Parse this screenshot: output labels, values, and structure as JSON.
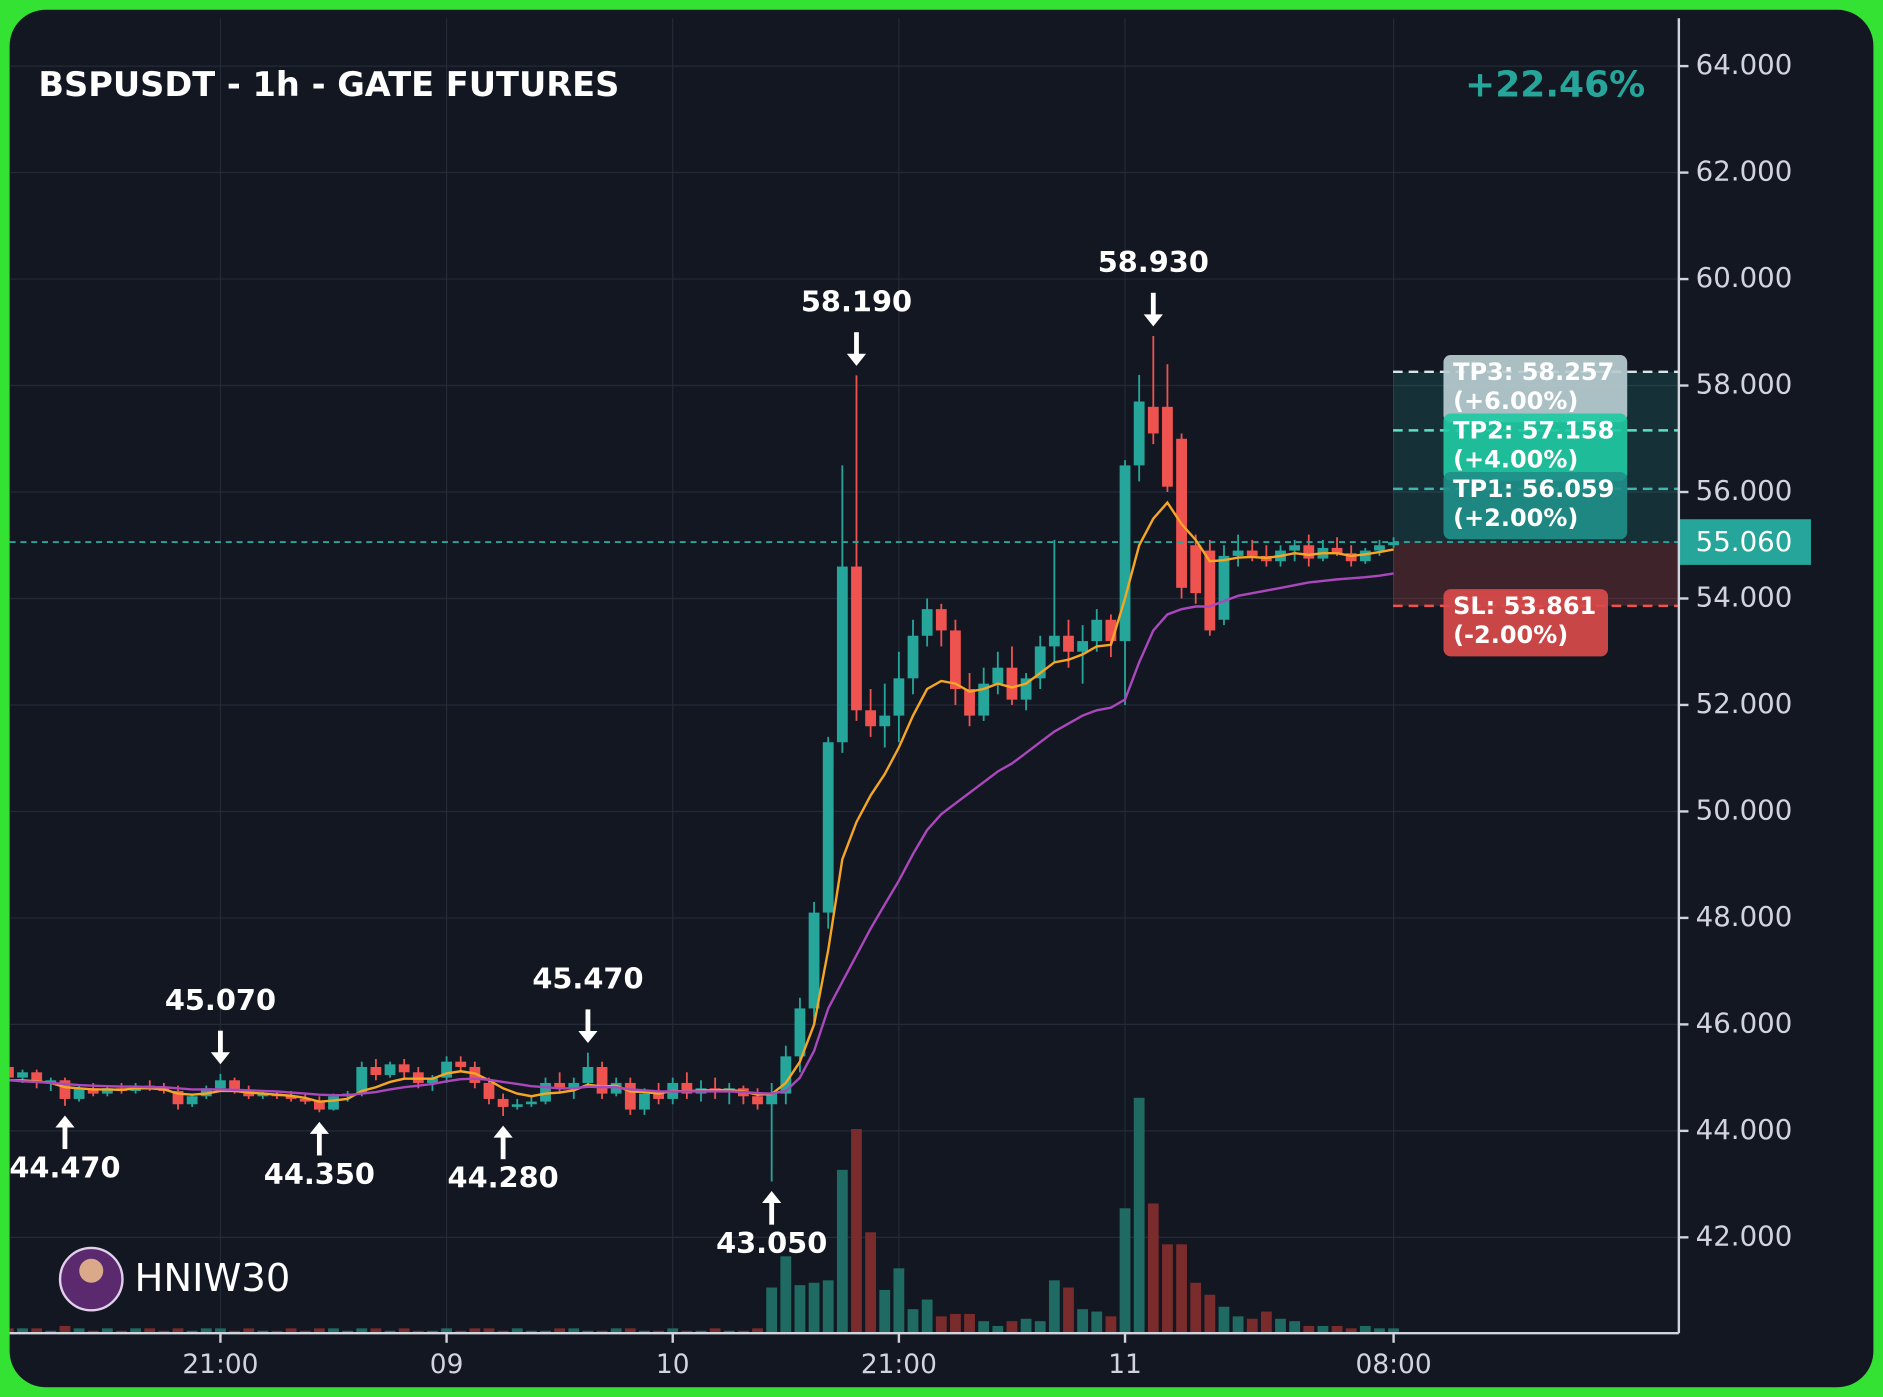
{
  "chart_data": {
    "type": "candlestick",
    "title": "BSPUSDT - 1h - GATE FUTURES",
    "change": "+22.46%",
    "watermark": "HNIW30",
    "categories": [
      null,
      null,
      null,
      null,
      null,
      null,
      null,
      null,
      null,
      null,
      null,
      null,
      null,
      null,
      null,
      "21:00",
      null,
      null,
      null,
      null,
      null,
      null,
      null,
      null,
      null,
      null,
      null,
      null,
      null,
      null,
      null,
      "09",
      null,
      null,
      null,
      null,
      null,
      null,
      null,
      null,
      null,
      null,
      null,
      null,
      null,
      null,
      null,
      "10",
      null,
      null,
      null,
      null,
      null,
      null,
      null,
      null,
      null,
      null,
      null,
      null,
      null,
      null,
      null,
      "21:00",
      null,
      null,
      null,
      null,
      null,
      null,
      null,
      null,
      null,
      null,
      null,
      null,
      null,
      null,
      null,
      "11",
      null,
      null,
      null,
      null,
      null,
      null,
      null,
      null,
      null,
      null,
      null,
      null,
      null,
      null,
      null,
      null,
      null,
      null,
      "08:00"
    ],
    "open": [
      45.2,
      45.0,
      45.1,
      44.9,
      44.95,
      44.6,
      44.8,
      44.7,
      44.8,
      44.75,
      44.85,
      44.8,
      44.75,
      44.5,
      44.65,
      44.8,
      44.95,
      44.75,
      44.65,
      44.7,
      44.65,
      44.6,
      44.55,
      44.4,
      44.65,
      44.7,
      45.2,
      45.05,
      45.25,
      45.1,
      44.9,
      45.0,
      45.3,
      45.2,
      44.9,
      44.6,
      44.45,
      44.5,
      44.55,
      44.9,
      44.8,
      44.9,
      45.2,
      44.7,
      44.9,
      44.4,
      44.7,
      44.6,
      44.9,
      44.7,
      44.8,
      44.75,
      44.8,
      44.65,
      44.5,
      44.7,
      45.4,
      46.3,
      48.1,
      51.3,
      54.6,
      51.9,
      51.6,
      51.8,
      52.5,
      53.3,
      53.8,
      53.4,
      52.3,
      51.8,
      52.4,
      52.7,
      52.1,
      52.5,
      53.1,
      53.3,
      53.0,
      53.2,
      53.6,
      53.2,
      56.5,
      57.6,
      57.6,
      57.0,
      55.0,
      54.9,
      53.6,
      54.8,
      54.9,
      54.8,
      54.7,
      54.9,
      55.0,
      54.75,
      54.95,
      54.85,
      54.7,
      54.9,
      55.0
    ],
    "high": [
      45.25,
      45.15,
      45.15,
      45.0,
      45.0,
      44.85,
      44.9,
      44.85,
      44.9,
      44.9,
      44.95,
      44.9,
      44.85,
      44.7,
      44.85,
      45.07,
      45.0,
      44.85,
      44.75,
      44.75,
      44.75,
      44.7,
      44.65,
      44.7,
      44.75,
      45.3,
      45.35,
      45.3,
      45.35,
      45.2,
      45.05,
      45.4,
      45.4,
      45.3,
      45.0,
      44.7,
      44.6,
      44.65,
      45.0,
      45.1,
      45.0,
      45.47,
      45.3,
      45.0,
      45.0,
      44.8,
      44.9,
      45.0,
      45.1,
      44.95,
      45.0,
      44.9,
      44.85,
      44.8,
      44.9,
      45.6,
      46.5,
      48.3,
      51.4,
      56.5,
      58.19,
      52.3,
      52.4,
      53.0,
      53.6,
      54.0,
      53.9,
      53.6,
      52.6,
      52.7,
      53.0,
      53.1,
      52.6,
      53.3,
      55.1,
      53.6,
      53.5,
      53.8,
      53.7,
      56.6,
      58.2,
      58.93,
      58.4,
      57.1,
      55.2,
      55.1,
      55.0,
      55.2,
      55.1,
      55.0,
      55.0,
      55.1,
      55.2,
      55.1,
      55.15,
      55.0,
      54.95,
      55.1,
      55.15
    ],
    "low": [
      44.9,
      44.9,
      44.8,
      44.75,
      44.47,
      44.55,
      44.65,
      44.65,
      44.7,
      44.7,
      44.75,
      44.7,
      44.4,
      44.45,
      44.6,
      44.75,
      44.7,
      44.6,
      44.6,
      44.6,
      44.55,
      44.5,
      44.35,
      44.38,
      44.55,
      44.65,
      44.95,
      45.0,
      45.0,
      44.8,
      44.75,
      44.9,
      45.1,
      44.8,
      44.5,
      44.28,
      44.4,
      44.45,
      44.5,
      44.7,
      44.6,
      44.85,
      44.6,
      44.65,
      44.3,
      44.3,
      44.5,
      44.5,
      44.6,
      44.55,
      44.6,
      44.5,
      44.5,
      44.4,
      43.05,
      44.5,
      45.1,
      46.0,
      47.8,
      51.1,
      51.7,
      51.4,
      51.2,
      51.3,
      52.2,
      53.1,
      53.1,
      52.0,
      51.6,
      51.7,
      52.2,
      52.0,
      51.9,
      52.3,
      52.8,
      52.7,
      52.4,
      53.0,
      52.9,
      52.0,
      56.2,
      56.9,
      56.0,
      54.0,
      53.9,
      53.3,
      53.5,
      54.6,
      54.7,
      54.6,
      54.6,
      54.7,
      54.6,
      54.7,
      54.8,
      54.6,
      54.65,
      54.8,
      54.95
    ],
    "close": [
      45.0,
      45.1,
      44.9,
      44.95,
      44.6,
      44.8,
      44.7,
      44.8,
      44.75,
      44.85,
      44.8,
      44.75,
      44.5,
      44.65,
      44.8,
      44.95,
      44.75,
      44.65,
      44.7,
      44.65,
      44.6,
      44.55,
      44.4,
      44.65,
      44.7,
      45.2,
      45.05,
      45.25,
      45.1,
      44.9,
      45.0,
      45.3,
      45.2,
      44.9,
      44.6,
      44.45,
      44.5,
      44.55,
      44.9,
      44.8,
      44.9,
      45.2,
      44.7,
      44.9,
      44.4,
      44.7,
      44.6,
      44.9,
      44.7,
      44.8,
      44.75,
      44.8,
      44.65,
      44.5,
      44.7,
      45.4,
      46.3,
      48.1,
      51.3,
      54.6,
      51.9,
      51.6,
      51.8,
      52.5,
      53.3,
      53.8,
      53.4,
      52.3,
      51.8,
      52.4,
      52.7,
      52.1,
      52.5,
      53.1,
      53.3,
      53.0,
      53.2,
      53.6,
      53.2,
      56.5,
      57.7,
      57.1,
      56.1,
      54.2,
      54.1,
      53.4,
      54.8,
      54.9,
      54.8,
      54.7,
      54.9,
      55.0,
      54.75,
      54.95,
      54.85,
      54.7,
      54.9,
      55.0,
      55.06
    ],
    "up_color": "#26a69a",
    "down_color": "#ef5350",
    "lines": [
      {
        "color": "#f5a623",
        "values": [
          44.95,
          44.95,
          44.93,
          44.9,
          44.82,
          44.8,
          44.78,
          44.78,
          44.77,
          44.8,
          44.8,
          44.78,
          44.7,
          44.68,
          44.7,
          44.75,
          44.75,
          44.72,
          44.7,
          44.68,
          44.66,
          44.62,
          44.55,
          44.57,
          44.6,
          44.75,
          44.82,
          44.92,
          44.98,
          44.98,
          44.98,
          45.08,
          45.12,
          45.08,
          44.95,
          44.8,
          44.7,
          44.65,
          44.7,
          44.72,
          44.76,
          44.87,
          44.83,
          44.85,
          44.74,
          44.73,
          44.7,
          44.75,
          44.74,
          44.76,
          44.76,
          44.77,
          44.74,
          44.68,
          44.69,
          44.9,
          45.3,
          46.0,
          47.4,
          49.1,
          49.8,
          50.3,
          50.7,
          51.2,
          51.8,
          52.3,
          52.45,
          52.4,
          52.25,
          52.3,
          52.4,
          52.33,
          52.4,
          52.6,
          52.8,
          52.85,
          52.95,
          53.1,
          53.13,
          54.0,
          55.0,
          55.5,
          55.8,
          55.4,
          55.1,
          54.7,
          54.72,
          54.77,
          54.78,
          54.76,
          54.8,
          54.85,
          54.82,
          54.85,
          54.85,
          54.8,
          54.83,
          54.87,
          54.92
        ]
      },
      {
        "color": "#ab47bc",
        "values": [
          44.95,
          44.93,
          44.92,
          44.9,
          44.88,
          44.86,
          44.85,
          44.84,
          44.83,
          44.83,
          44.82,
          44.82,
          44.8,
          44.78,
          44.78,
          44.78,
          44.77,
          44.76,
          44.75,
          44.74,
          44.72,
          44.7,
          44.68,
          44.67,
          44.67,
          44.7,
          44.73,
          44.78,
          44.82,
          44.85,
          44.88,
          44.93,
          44.97,
          44.98,
          44.96,
          44.92,
          44.88,
          44.84,
          44.82,
          44.8,
          44.8,
          44.83,
          44.82,
          44.82,
          44.78,
          44.76,
          44.74,
          44.74,
          44.74,
          44.74,
          44.74,
          44.74,
          44.73,
          44.71,
          44.7,
          44.75,
          45.0,
          45.5,
          46.3,
          46.8,
          47.3,
          47.8,
          48.25,
          48.7,
          49.2,
          49.65,
          49.95,
          50.15,
          50.35,
          50.55,
          50.75,
          50.9,
          51.1,
          51.3,
          51.5,
          51.65,
          51.8,
          51.9,
          51.95,
          52.1,
          52.8,
          53.4,
          53.7,
          53.8,
          53.85,
          53.85,
          53.95,
          54.05,
          54.1,
          54.15,
          54.2,
          54.25,
          54.3,
          54.33,
          54.36,
          54.38,
          54.4,
          54.43,
          54.47
        ]
      }
    ],
    "volume": {
      "up_color": "#1f6b63",
      "down_color": "#7a2b2b",
      "values": [
        2,
        2,
        2,
        1,
        3,
        2,
        1,
        2,
        1,
        2,
        2,
        1,
        2,
        1,
        2,
        2,
        1,
        2,
        1,
        1,
        2,
        1,
        2,
        2,
        1,
        2,
        2,
        1,
        2,
        1,
        1,
        2,
        1,
        2,
        2,
        1,
        2,
        1,
        1,
        2,
        2,
        1,
        1,
        2,
        2,
        1,
        1,
        2,
        1,
        1,
        2,
        1,
        1,
        2,
        19,
        32,
        20,
        21,
        22,
        68,
        85,
        42,
        18,
        27,
        10,
        14,
        7,
        8,
        8,
        5,
        3,
        5,
        6,
        5,
        22,
        19,
        10,
        9,
        7,
        52,
        98,
        54,
        37,
        37,
        21,
        16,
        11,
        7,
        6,
        9,
        6,
        5,
        3,
        3,
        3,
        2,
        3,
        2,
        2
      ]
    },
    "vlim": [
      0,
      100
    ],
    "ylim": [
      40.2,
      64.9
    ],
    "yticks": [
      {
        "value": 42,
        "label": "42.000"
      },
      {
        "value": 44,
        "label": "44.000"
      },
      {
        "value": 46,
        "label": "46.000"
      },
      {
        "value": 48,
        "label": "48.000"
      },
      {
        "value": 50,
        "label": "50.000"
      },
      {
        "value": 52,
        "label": "52.000"
      },
      {
        "value": 54,
        "label": "54.000"
      },
      {
        "value": 56,
        "label": "56.000"
      },
      {
        "value": 58,
        "label": "58.000"
      },
      {
        "value": 60,
        "label": "60.000"
      },
      {
        "value": 62,
        "label": "62.000"
      },
      {
        "value": 64,
        "label": "64.000"
      }
    ],
    "grid": true,
    "last_price": {
      "value": 55.06,
      "label": "55.060"
    },
    "levels": [
      {
        "value": 58.257,
        "label": "TP3: 58.257",
        "change": "(+6.00%)",
        "color": "#b9cdd0",
        "line_color": "#d8e4e6"
      },
      {
        "value": 57.158,
        "label": "TP2: 57.158",
        "change": "(+4.00%)",
        "color": "#1fc9a2",
        "line_color": "#5fe0c2"
      },
      {
        "value": 56.059,
        "label": "TP1: 56.059",
        "change": "(+2.00%)",
        "color": "#1f8f88",
        "line_color": "#3fb5ac"
      },
      {
        "value": 53.861,
        "label": "SL: 53.861",
        "change": "(-2.00%)",
        "color": "#d94b4b",
        "line_color": "#ef5350"
      }
    ],
    "extremes": [
      {
        "value": 44.47,
        "label": "44.470"
      },
      {
        "value": 45.07,
        "label": "45.070"
      },
      {
        "value": 44.35,
        "label": "44.350"
      },
      {
        "value": 44.28,
        "label": "44.280"
      },
      {
        "value": 45.47,
        "label": "45.470"
      },
      {
        "value": 43.05,
        "label": "43.050"
      },
      {
        "value": 58.19,
        "label": "58.190"
      },
      {
        "value": 58.93,
        "label": "58.930"
      }
    ]
  }
}
